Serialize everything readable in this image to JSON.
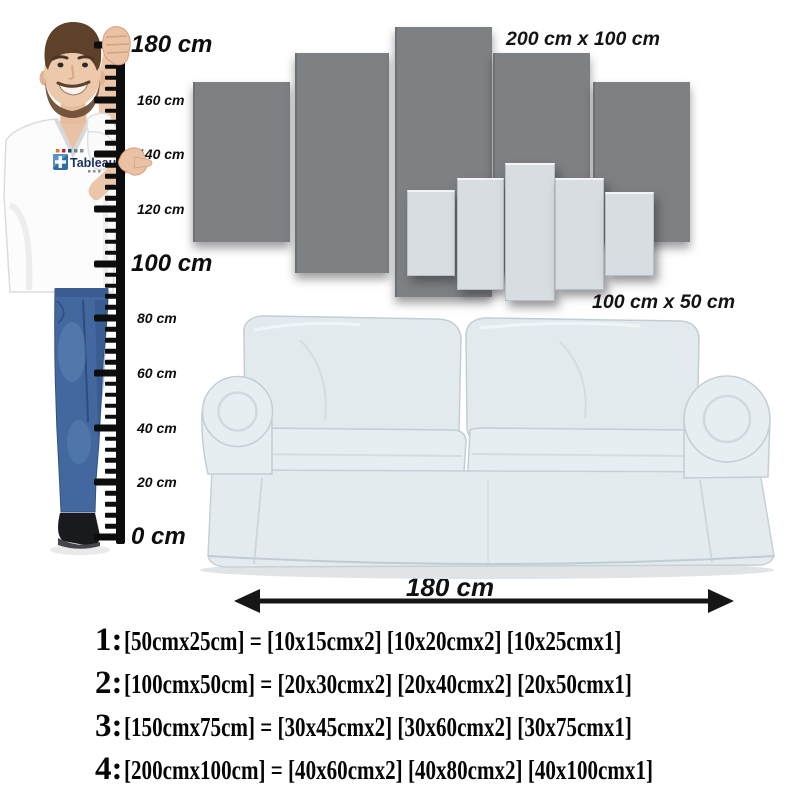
{
  "ruler": {
    "marks": [
      {
        "label": "180 cm",
        "size": "big"
      },
      {
        "label": "160 cm",
        "size": "small"
      },
      {
        "label": "140 cm",
        "size": "small"
      },
      {
        "label": "120 cm",
        "size": "small"
      },
      {
        "label": "100 cm",
        "size": "big"
      },
      {
        "label": "80 cm",
        "size": "small"
      },
      {
        "label": "60 cm",
        "size": "small"
      },
      {
        "label": "40 cm",
        "size": "small"
      },
      {
        "label": "20 cm",
        "size": "small"
      },
      {
        "label": "0 cm",
        "size": "big"
      }
    ]
  },
  "panels": {
    "large_set_label": "200 cm x 100 cm",
    "small_set_label": "100 cm x 50 cm"
  },
  "sofa": {
    "width_label": "180 cm"
  },
  "shirt": {
    "logo_text": "Tableau"
  },
  "size_table": {
    "rows": [
      {
        "num": "1:",
        "text": "[50cmx25cm] = [10x15cmx2] [10x20cmx2] [10x25cmx1]"
      },
      {
        "num": "2:",
        "text": "[100cmx50cm] = [20x30cmx2] [20x40cmx2] [20x50cmx1]"
      },
      {
        "num": "3:",
        "text": "[150cmx75cm] = [30x45cmx2] [30x60cmx2] [30x75cmx1]"
      },
      {
        "num": "4:",
        "text": "[200cmx100cm] = [40x60cmx2] [40x80cmx2] [40x100cmx1]"
      }
    ]
  },
  "colors": {
    "panel_dark": "#7e8184",
    "panel_light": "#d8dde2",
    "text_black": "#0d0d0d",
    "jeans_blue": "#42689f",
    "sofa_fabric": "#e4ecef",
    "logo_navy": "#1b2f5e"
  }
}
